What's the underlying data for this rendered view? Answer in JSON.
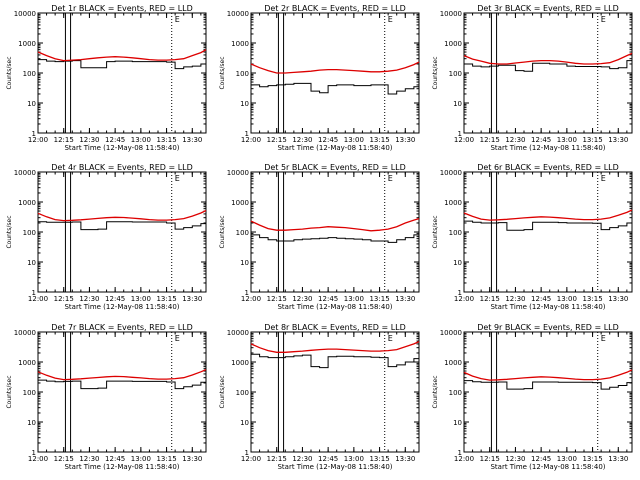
{
  "colors": {
    "events": "#000000",
    "lld": "#dd0000",
    "axes": "#000000",
    "background": "#ffffff"
  },
  "chart_data": [
    {
      "type": "line",
      "title": "Det 1r BLACK = Events, RED = LLD",
      "xlabel": "Start Time (12-May-08 11:58:40)",
      "ylabel": "Counts/sec",
      "yscale": "log",
      "ylim": [
        1,
        10000
      ],
      "xlim": [
        "12:00",
        "13:38"
      ],
      "x_tick_labels": [
        "12:00",
        "12:15",
        "12:30",
        "12:45",
        "13:00",
        "13:15",
        "13:30"
      ],
      "y_tick_labels": [
        "1",
        "10",
        "100",
        "1000",
        "10000"
      ],
      "marker_label": "E",
      "solid_vlines": [
        "12:16",
        "12:19"
      ],
      "dotted_vlines": [
        "13:18",
        "13:38"
      ],
      "x": [
        "12:00",
        "12:05",
        "12:10",
        "12:15",
        "12:20",
        "12:25",
        "12:30",
        "12:35",
        "12:40",
        "12:45",
        "12:50",
        "12:55",
        "13:00",
        "13:05",
        "13:10",
        "13:15",
        "13:20",
        "13:25",
        "13:30",
        "13:35",
        "13:38"
      ],
      "series": [
        {
          "name": "Events",
          "values": [
            280,
            250,
            240,
            250,
            260,
            150,
            150,
            150,
            240,
            250,
            250,
            240,
            240,
            240,
            240,
            230,
            140,
            160,
            170,
            200,
            210
          ]
        },
        {
          "name": "LLD",
          "values": [
            500,
            380,
            300,
            260,
            270,
            280,
            300,
            320,
            340,
            350,
            340,
            320,
            300,
            280,
            270,
            270,
            280,
            300,
            380,
            480,
            600
          ]
        }
      ]
    },
    {
      "type": "line",
      "title": "Det 2r BLACK = Events, RED = LLD",
      "xlabel": "Start Time (12-May-08 11:58:40)",
      "ylabel": "Counts/sec",
      "yscale": "log",
      "ylim": [
        1,
        10000
      ],
      "xlim": [
        "12:00",
        "13:38"
      ],
      "x_tick_labels": [
        "12:00",
        "12:15",
        "12:30",
        "12:45",
        "13:00",
        "13:15",
        "13:30"
      ],
      "y_tick_labels": [
        "1",
        "10",
        "100",
        "1000",
        "10000"
      ],
      "marker_label": "E",
      "solid_vlines": [
        "12:16",
        "12:19"
      ],
      "dotted_vlines": [
        "13:18",
        "13:38"
      ],
      "x": [
        "12:00",
        "12:05",
        "12:10",
        "12:15",
        "12:20",
        "12:25",
        "12:30",
        "12:35",
        "12:40",
        "12:45",
        "12:50",
        "12:55",
        "13:00",
        "13:05",
        "13:10",
        "13:15",
        "13:20",
        "13:25",
        "13:30",
        "13:35",
        "13:38"
      ],
      "series": [
        {
          "name": "Events",
          "values": [
            40,
            35,
            38,
            40,
            42,
            45,
            45,
            25,
            22,
            38,
            40,
            40,
            38,
            38,
            40,
            40,
            20,
            25,
            30,
            35,
            38
          ]
        },
        {
          "name": "LLD",
          "values": [
            200,
            150,
            120,
            100,
            100,
            105,
            110,
            115,
            125,
            130,
            130,
            125,
            120,
            115,
            110,
            110,
            115,
            125,
            150,
            190,
            230
          ]
        }
      ]
    },
    {
      "type": "line",
      "title": "Det 3r BLACK = Events, RED = LLD",
      "xlabel": "Start Time (12-May-08 11:58:40)",
      "ylabel": "Counts/sec",
      "yscale": "log",
      "ylim": [
        1,
        10000
      ],
      "xlim": [
        "12:00",
        "13:38"
      ],
      "x_tick_labels": [
        "12:00",
        "12:15",
        "12:30",
        "12:45",
        "13:00",
        "13:15",
        "13:30"
      ],
      "y_tick_labels": [
        "1",
        "10",
        "100",
        "1000",
        "10000"
      ],
      "marker_label": "E",
      "solid_vlines": [
        "12:16",
        "12:19"
      ],
      "dotted_vlines": [
        "13:18",
        "13:38"
      ],
      "x": [
        "12:00",
        "12:05",
        "12:10",
        "12:15",
        "12:20",
        "12:25",
        "12:30",
        "12:35",
        "12:40",
        "12:45",
        "12:50",
        "12:55",
        "13:00",
        "13:05",
        "13:10",
        "13:15",
        "13:20",
        "13:25",
        "13:30",
        "13:35",
        "13:38"
      ],
      "series": [
        {
          "name": "Events",
          "values": [
            200,
            170,
            160,
            170,
            180,
            180,
            120,
            115,
            210,
            210,
            200,
            200,
            170,
            165,
            165,
            165,
            160,
            140,
            150,
            260,
            280
          ]
        },
        {
          "name": "LLD",
          "values": [
            380,
            290,
            250,
            210,
            200,
            200,
            215,
            230,
            250,
            260,
            260,
            250,
            230,
            210,
            200,
            200,
            205,
            220,
            280,
            380,
            450
          ]
        }
      ]
    },
    {
      "type": "line",
      "title": "Det 4r BLACK = Events, RED = LLD",
      "xlabel": "Start Time (12-May-08 11:58:40)",
      "ylabel": "Counts/sec",
      "yscale": "log",
      "ylim": [
        1,
        10000
      ],
      "xlim": [
        "12:00",
        "13:38"
      ],
      "x_tick_labels": [
        "12:00",
        "12:15",
        "12:30",
        "12:45",
        "13:00",
        "13:15",
        "13:30"
      ],
      "y_tick_labels": [
        "1",
        "10",
        "100",
        "1000",
        "10000"
      ],
      "marker_label": "E",
      "solid_vlines": [
        "12:16",
        "12:19"
      ],
      "dotted_vlines": [
        "13:18",
        "13:38"
      ],
      "x": [
        "12:00",
        "12:05",
        "12:10",
        "12:15",
        "12:20",
        "12:25",
        "12:30",
        "12:35",
        "12:40",
        "12:45",
        "12:50",
        "12:55",
        "13:00",
        "13:05",
        "13:10",
        "13:15",
        "13:20",
        "13:25",
        "13:30",
        "13:35",
        "13:38"
      ],
      "series": [
        {
          "name": "Events",
          "values": [
            220,
            210,
            210,
            210,
            215,
            120,
            120,
            125,
            220,
            220,
            220,
            215,
            215,
            215,
            215,
            200,
            125,
            140,
            160,
            190,
            200
          ]
        },
        {
          "name": "LLD",
          "values": [
            420,
            320,
            260,
            240,
            245,
            255,
            270,
            285,
            300,
            310,
            305,
            290,
            275,
            260,
            250,
            250,
            260,
            280,
            340,
            430,
            520
          ]
        }
      ]
    },
    {
      "type": "line",
      "title": "Det 5r BLACK = Events, RED = LLD",
      "xlabel": "Start Time (12-May-08 11:58:40)",
      "ylabel": "Counts/sec",
      "yscale": "log",
      "ylim": [
        1,
        10000
      ],
      "xlim": [
        "12:00",
        "13:38"
      ],
      "x_tick_labels": [
        "12:00",
        "12:15",
        "12:30",
        "12:45",
        "13:00",
        "13:15",
        "13:30"
      ],
      "y_tick_labels": [
        "1",
        "10",
        "100",
        "1000",
        "10000"
      ],
      "marker_label": "E",
      "solid_vlines": [
        "12:16",
        "12:19"
      ],
      "dotted_vlines": [
        "13:18",
        "13:38"
      ],
      "x": [
        "12:00",
        "12:05",
        "12:10",
        "12:15",
        "12:20",
        "12:25",
        "12:30",
        "12:35",
        "12:40",
        "12:45",
        "12:50",
        "12:55",
        "13:00",
        "13:05",
        "13:10",
        "13:15",
        "13:20",
        "13:25",
        "13:30",
        "13:35",
        "13:38"
      ],
      "series": [
        {
          "name": "Events",
          "values": [
            80,
            65,
            55,
            50,
            50,
            55,
            58,
            60,
            62,
            65,
            62,
            60,
            58,
            55,
            50,
            50,
            45,
            55,
            65,
            80,
            95
          ]
        },
        {
          "name": "LLD",
          "values": [
            230,
            170,
            130,
            115,
            115,
            120,
            125,
            135,
            140,
            150,
            145,
            140,
            130,
            120,
            110,
            115,
            125,
            150,
            200,
            250,
            280
          ]
        }
      ]
    },
    {
      "type": "line",
      "title": "Det 6r BLACK = Events, RED = LLD",
      "xlabel": "Start Time (12-May-08 11:58:40)",
      "ylabel": "Counts/sec",
      "yscale": "log",
      "ylim": [
        1,
        10000
      ],
      "xlim": [
        "12:00",
        "13:38"
      ],
      "x_tick_labels": [
        "12:00",
        "12:15",
        "12:30",
        "12:45",
        "13:00",
        "13:15",
        "13:30"
      ],
      "y_tick_labels": [
        "1",
        "10",
        "100",
        "1000",
        "10000"
      ],
      "marker_label": "E",
      "solid_vlines": [
        "12:16",
        "12:19"
      ],
      "dotted_vlines": [
        "13:18",
        "13:38"
      ],
      "x": [
        "12:00",
        "12:05",
        "12:10",
        "12:15",
        "12:20",
        "12:25",
        "12:30",
        "12:35",
        "12:40",
        "12:45",
        "12:50",
        "12:55",
        "13:00",
        "13:05",
        "13:10",
        "13:15",
        "13:20",
        "13:25",
        "13:30",
        "13:35",
        "13:38"
      ],
      "series": [
        {
          "name": "Events",
          "values": [
            230,
            210,
            200,
            200,
            205,
            115,
            115,
            120,
            210,
            210,
            210,
            205,
            200,
            200,
            200,
            195,
            120,
            140,
            160,
            200,
            210
          ]
        },
        {
          "name": "LLD",
          "values": [
            430,
            330,
            270,
            250,
            255,
            265,
            280,
            295,
            310,
            320,
            315,
            300,
            285,
            270,
            260,
            260,
            270,
            295,
            360,
            450,
            540
          ]
        }
      ]
    },
    {
      "type": "line",
      "title": "Det 7r BLACK = Events, RED = LLD",
      "xlabel": "Start Time (12-May-08 11:58:40)",
      "ylabel": "Counts/sec",
      "yscale": "log",
      "ylim": [
        1,
        10000
      ],
      "xlim": [
        "12:00",
        "13:38"
      ],
      "x_tick_labels": [
        "12:00",
        "12:15",
        "12:30",
        "12:45",
        "13:00",
        "13:15",
        "13:30"
      ],
      "y_tick_labels": [
        "1",
        "10",
        "100",
        "1000",
        "10000"
      ],
      "marker_label": "E",
      "solid_vlines": [
        "12:16",
        "12:19"
      ],
      "dotted_vlines": [
        "13:18",
        "13:38"
      ],
      "x": [
        "12:00",
        "12:05",
        "12:10",
        "12:15",
        "12:20",
        "12:25",
        "12:30",
        "12:35",
        "12:40",
        "12:45",
        "12:50",
        "12:55",
        "13:00",
        "13:05",
        "13:10",
        "13:15",
        "13:20",
        "13:25",
        "13:30",
        "13:35",
        "13:38"
      ],
      "series": [
        {
          "name": "Events",
          "values": [
            250,
            230,
            220,
            225,
            230,
            130,
            130,
            135,
            230,
            230,
            230,
            225,
            225,
            225,
            225,
            215,
            130,
            150,
            170,
            210,
            220
          ]
        },
        {
          "name": "LLD",
          "values": [
            470,
            360,
            290,
            260,
            265,
            275,
            290,
            305,
            320,
            330,
            325,
            310,
            295,
            280,
            270,
            270,
            280,
            300,
            370,
            470,
            560
          ]
        }
      ]
    },
    {
      "type": "line",
      "title": "Det 8r BLACK = Events, RED = LLD",
      "xlabel": "Start Time (12-May-08 11:58:40)",
      "ylabel": "Counts/sec",
      "yscale": "log",
      "ylim": [
        1,
        10000
      ],
      "xlim": [
        "12:00",
        "13:38"
      ],
      "x_tick_labels": [
        "12:00",
        "12:15",
        "12:30",
        "12:45",
        "13:00",
        "13:15",
        "13:30"
      ],
      "y_tick_labels": [
        "1",
        "10",
        "100",
        "1000",
        "10000"
      ],
      "marker_label": "E",
      "solid_vlines": [
        "12:16",
        "12:19"
      ],
      "dotted_vlines": [
        "13:18",
        "13:38"
      ],
      "x": [
        "12:00",
        "12:05",
        "12:10",
        "12:15",
        "12:20",
        "12:25",
        "12:30",
        "12:35",
        "12:40",
        "12:45",
        "12:50",
        "12:55",
        "13:00",
        "13:05",
        "13:10",
        "13:15",
        "13:20",
        "13:25",
        "13:30",
        "13:35",
        "13:38"
      ],
      "series": [
        {
          "name": "Events",
          "values": [
            1800,
            1500,
            1400,
            1400,
            1500,
            1600,
            1700,
            700,
            650,
            1500,
            1550,
            1550,
            1500,
            1500,
            1450,
            1400,
            700,
            800,
            1000,
            1300,
            1500
          ]
        },
        {
          "name": "LLD",
          "values": [
            4000,
            3000,
            2400,
            2100,
            2100,
            2200,
            2300,
            2450,
            2600,
            2700,
            2700,
            2600,
            2500,
            2400,
            2300,
            2300,
            2400,
            2600,
            3200,
            4000,
            4800
          ]
        }
      ]
    },
    {
      "type": "line",
      "title": "Det 9r BLACK = Events, RED = LLD",
      "xlabel": "Start Time (12-May-08 11:58:40)",
      "ylabel": "Counts/sec",
      "yscale": "log",
      "ylim": [
        1,
        10000
      ],
      "xlim": [
        "12:00",
        "13:38"
      ],
      "x_tick_labels": [
        "12:00",
        "12:15",
        "12:30",
        "12:45",
        "13:00",
        "13:15",
        "13:30"
      ],
      "y_tick_labels": [
        "1",
        "10",
        "100",
        "1000",
        "10000"
      ],
      "marker_label": "E",
      "solid_vlines": [
        "12:16",
        "12:19"
      ],
      "dotted_vlines": [
        "13:18",
        "13:38"
      ],
      "x": [
        "12:00",
        "12:05",
        "12:10",
        "12:15",
        "12:20",
        "12:25",
        "12:30",
        "12:35",
        "12:40",
        "12:45",
        "12:50",
        "12:55",
        "13:00",
        "13:05",
        "13:10",
        "13:15",
        "13:20",
        "13:25",
        "13:30",
        "13:35",
        "13:38"
      ],
      "series": [
        {
          "name": "Events",
          "values": [
            240,
            220,
            210,
            210,
            215,
            125,
            125,
            130,
            215,
            215,
            215,
            210,
            210,
            210,
            210,
            205,
            125,
            145,
            165,
            205,
            215
          ]
        },
        {
          "name": "LLD",
          "values": [
            450,
            340,
            280,
            250,
            255,
            265,
            280,
            295,
            310,
            320,
            315,
            300,
            285,
            270,
            260,
            260,
            270,
            295,
            360,
            455,
            545
          ]
        }
      ]
    }
  ]
}
